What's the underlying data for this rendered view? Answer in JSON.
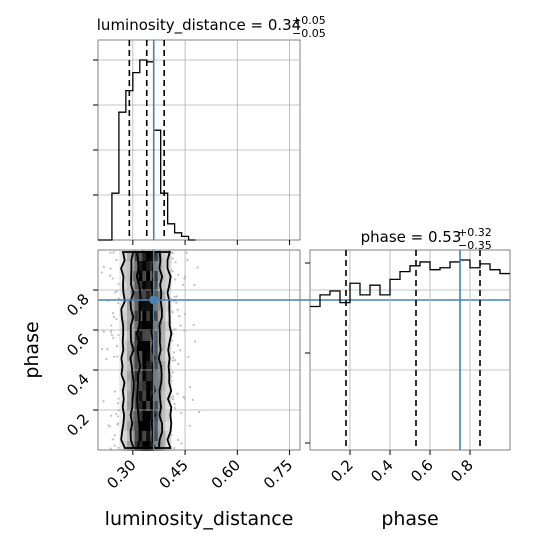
{
  "chart_data": {
    "type": "corner",
    "parameters": [
      "luminosity_distance",
      "phase"
    ],
    "truth": {
      "luminosity_distance": 0.36,
      "phase": 0.75
    },
    "panels": {
      "luminosity_distance_hist": {
        "type": "histogram",
        "title_name": "luminosity_distance",
        "title_value": "0.34",
        "title_plus": "+0.05",
        "title_minus": "−0.05",
        "xlim": [
          0.2,
          0.78
        ],
        "quantiles": [
          0.29,
          0.34,
          0.39
        ],
        "bin_edges": [
          0.2,
          0.22,
          0.24,
          0.26,
          0.28,
          0.3,
          0.32,
          0.34,
          0.36,
          0.38,
          0.4,
          0.42,
          0.44,
          0.46,
          0.48
        ],
        "counts": [
          0,
          0,
          0.26,
          0.71,
          0.83,
          0.93,
          1.0,
          0.99,
          0.61,
          0.26,
          0.09,
          0.04,
          0.02,
          0
        ]
      },
      "phase_hist": {
        "type": "histogram",
        "title_name": "phase",
        "title_value": "0.53",
        "title_plus": "+0.32",
        "title_minus": "−0.35",
        "xlim": [
          0.0,
          1.0
        ],
        "quantiles": [
          0.18,
          0.53,
          0.85
        ],
        "bin_edges": [
          0.0,
          0.05,
          0.1,
          0.15,
          0.2,
          0.25,
          0.3,
          0.35,
          0.4,
          0.45,
          0.5,
          0.55,
          0.6,
          0.65,
          0.7,
          0.75,
          0.8,
          0.85,
          0.9,
          0.95,
          1.0
        ],
        "counts": [
          0.74,
          0.8,
          0.82,
          0.76,
          0.86,
          0.8,
          0.85,
          0.8,
          0.88,
          0.92,
          0.95,
          0.97,
          0.93,
          0.94,
          0.97,
          0.98,
          0.94,
          0.96,
          0.93,
          0.91
        ]
      },
      "scatter_2d": {
        "type": "density",
        "xlim": [
          0.2,
          0.78
        ],
        "ylim": [
          0.0,
          1.0
        ],
        "x_center": 0.34,
        "x_spread": 0.05,
        "contours": [
          {
            "left": 0.317,
            "right": 0.358
          },
          {
            "left": 0.298,
            "right": 0.38
          },
          {
            "left": 0.272,
            "right": 0.405
          }
        ]
      }
    },
    "xticks_luminosity_distance": [
      "0.30",
      "0.45",
      "0.60",
      "0.75"
    ],
    "xticks_luminosity_distance_values": [
      0.3,
      0.45,
      0.6,
      0.75
    ],
    "ticks_phase": [
      "0.2",
      "0.4",
      "0.6",
      "0.8"
    ],
    "ticks_phase_values": [
      0.2,
      0.4,
      0.6,
      0.8
    ],
    "xlabel_luminosity_distance": "luminosity_distance",
    "xlabel_phase": "phase",
    "ylabel_phase": "phase",
    "colors": {
      "truth": "#4682b4",
      "hist": "#000000",
      "quantile": "#000000"
    }
  }
}
